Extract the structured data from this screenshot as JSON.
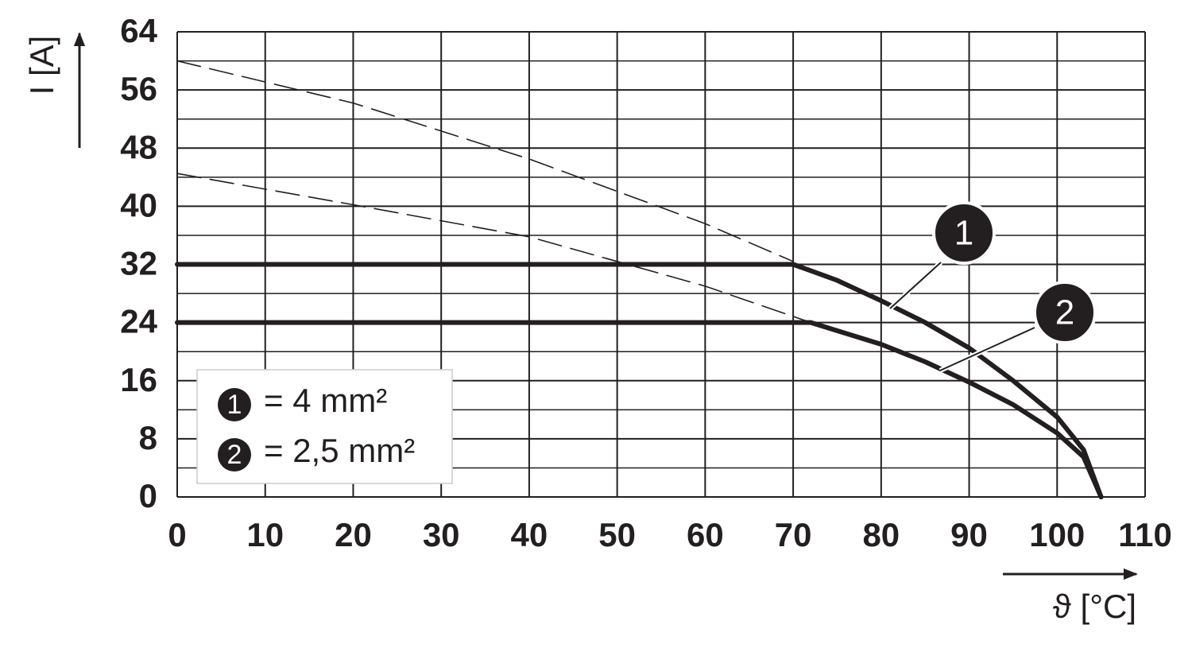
{
  "chart_data": {
    "type": "line",
    "x_label": "ϑ [°C]",
    "y_label": "I [A]",
    "xlim": [
      0,
      110
    ],
    "ylim": [
      0,
      64
    ],
    "xticks": [
      0,
      10,
      20,
      30,
      40,
      50,
      60,
      70,
      80,
      90,
      100,
      110
    ],
    "yticks": [
      0,
      8,
      16,
      24,
      32,
      40,
      48,
      56,
      64
    ],
    "yminor": [
      4,
      12,
      20,
      28,
      36,
      44,
      52,
      60
    ],
    "grid": true,
    "series": [
      {
        "name": "= 4 mm²",
        "marker": "1",
        "color": "#231f20",
        "style": "solid",
        "x": [
          0,
          70,
          75,
          80,
          85,
          90,
          95,
          100,
          103,
          105
        ],
        "values": [
          32,
          32,
          29.8,
          27,
          24,
          20.5,
          16,
          11,
          6.5,
          0
        ]
      },
      {
        "name": "= 2,5 mm²",
        "marker": "2",
        "color": "#231f20",
        "style": "solid",
        "x": [
          0,
          72,
          80,
          85,
          90,
          95,
          100,
          103,
          105
        ],
        "values": [
          24,
          24,
          21,
          18.6,
          15.8,
          12.7,
          8.8,
          5.5,
          0
        ]
      },
      {
        "color": "#231f20",
        "style": "dashed",
        "x": [
          0,
          20,
          40,
          60,
          70
        ],
        "values": [
          60,
          54.2,
          46.5,
          37.6,
          32.4
        ]
      },
      {
        "color": "#231f20",
        "style": "dashed",
        "x": [
          0,
          20,
          40,
          60,
          72
        ],
        "values": [
          44.5,
          40.2,
          35.8,
          29,
          24
        ]
      }
    ]
  }
}
